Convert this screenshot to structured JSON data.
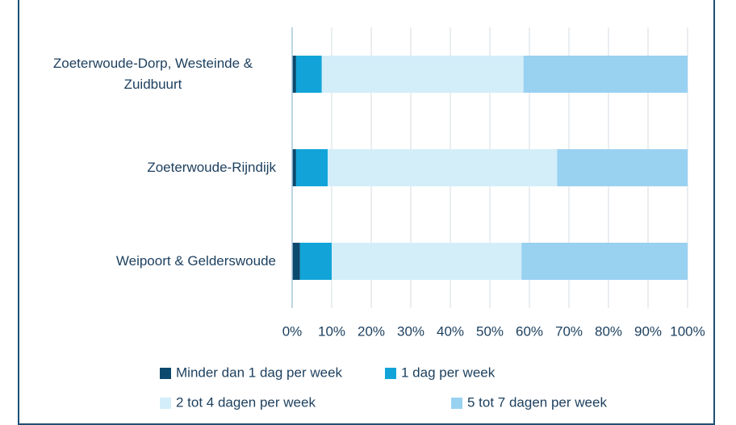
{
  "chart_data": {
    "type": "stacked_barh",
    "categories": [
      "Zoeterwoude-Dorp, Westeinde & Zuidbuurt",
      "Zoeterwoude-Rijndijk",
      "Weipoort & Gelderswoude"
    ],
    "series": [
      {
        "name": "Minder dan 1 dag per week",
        "color": "#0b4a6e",
        "values": [
          1,
          1,
          2
        ]
      },
      {
        "name": "1 dag per week",
        "color": "#12a4d8",
        "values": [
          6.5,
          8,
          8
        ]
      },
      {
        "name": "2 tot 4 dagen per week",
        "color": "#d3eef9",
        "values": [
          51,
          58,
          48
        ]
      },
      {
        "name": "5 tot 7 dagen per week",
        "color": "#99d1f1",
        "values": [
          41.5,
          33,
          42
        ]
      }
    ],
    "xlim": [
      0,
      100
    ],
    "xticks": [
      {
        "value": 0,
        "label": "0%"
      },
      {
        "value": 10,
        "label": "10%"
      },
      {
        "value": 20,
        "label": "20%"
      },
      {
        "value": 30,
        "label": "30%"
      },
      {
        "value": 40,
        "label": "40%"
      },
      {
        "value": 50,
        "label": "50%"
      },
      {
        "value": 60,
        "label": "60%"
      },
      {
        "value": 70,
        "label": "70%"
      },
      {
        "value": 80,
        "label": "80%"
      },
      {
        "value": 90,
        "label": "90%"
      },
      {
        "value": 100,
        "label": "100%"
      }
    ],
    "grid": true
  }
}
